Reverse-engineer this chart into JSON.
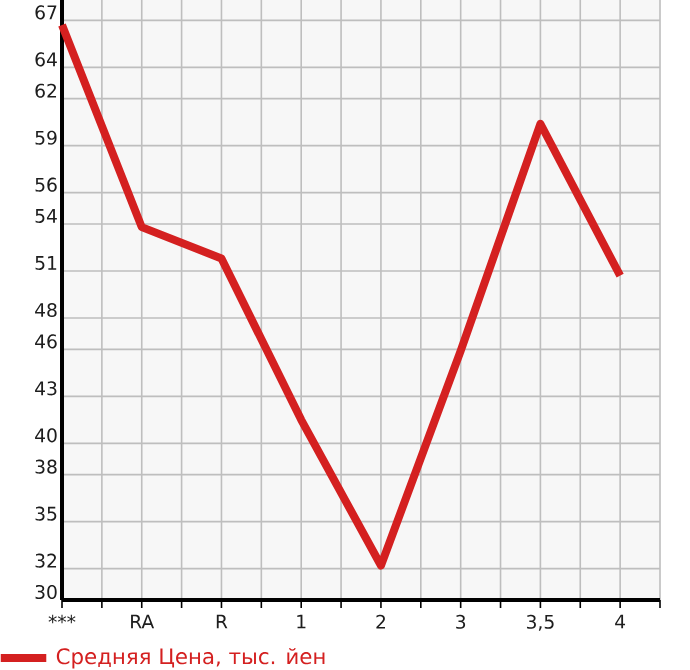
{
  "chart_data": {
    "type": "line",
    "categories": [
      "***",
      "RA",
      "R",
      "1",
      "2",
      "3",
      "3,5",
      "4"
    ],
    "series": [
      {
        "name": "Средняя Цена, тыс. йен",
        "color": "#d42020",
        "values": [
          66.7,
          53.8,
          51.8,
          41.5,
          32.2,
          45.9,
          60.4,
          50.7
        ]
      }
    ],
    "ylim": [
      30,
      68.3
    ],
    "yticks": [
      30,
      32,
      35,
      38,
      40,
      43,
      46,
      48,
      51,
      54,
      56,
      59,
      62,
      64,
      67
    ],
    "grid": true,
    "legend": "bottom left",
    "marker": "none",
    "line_style": "solid"
  }
}
